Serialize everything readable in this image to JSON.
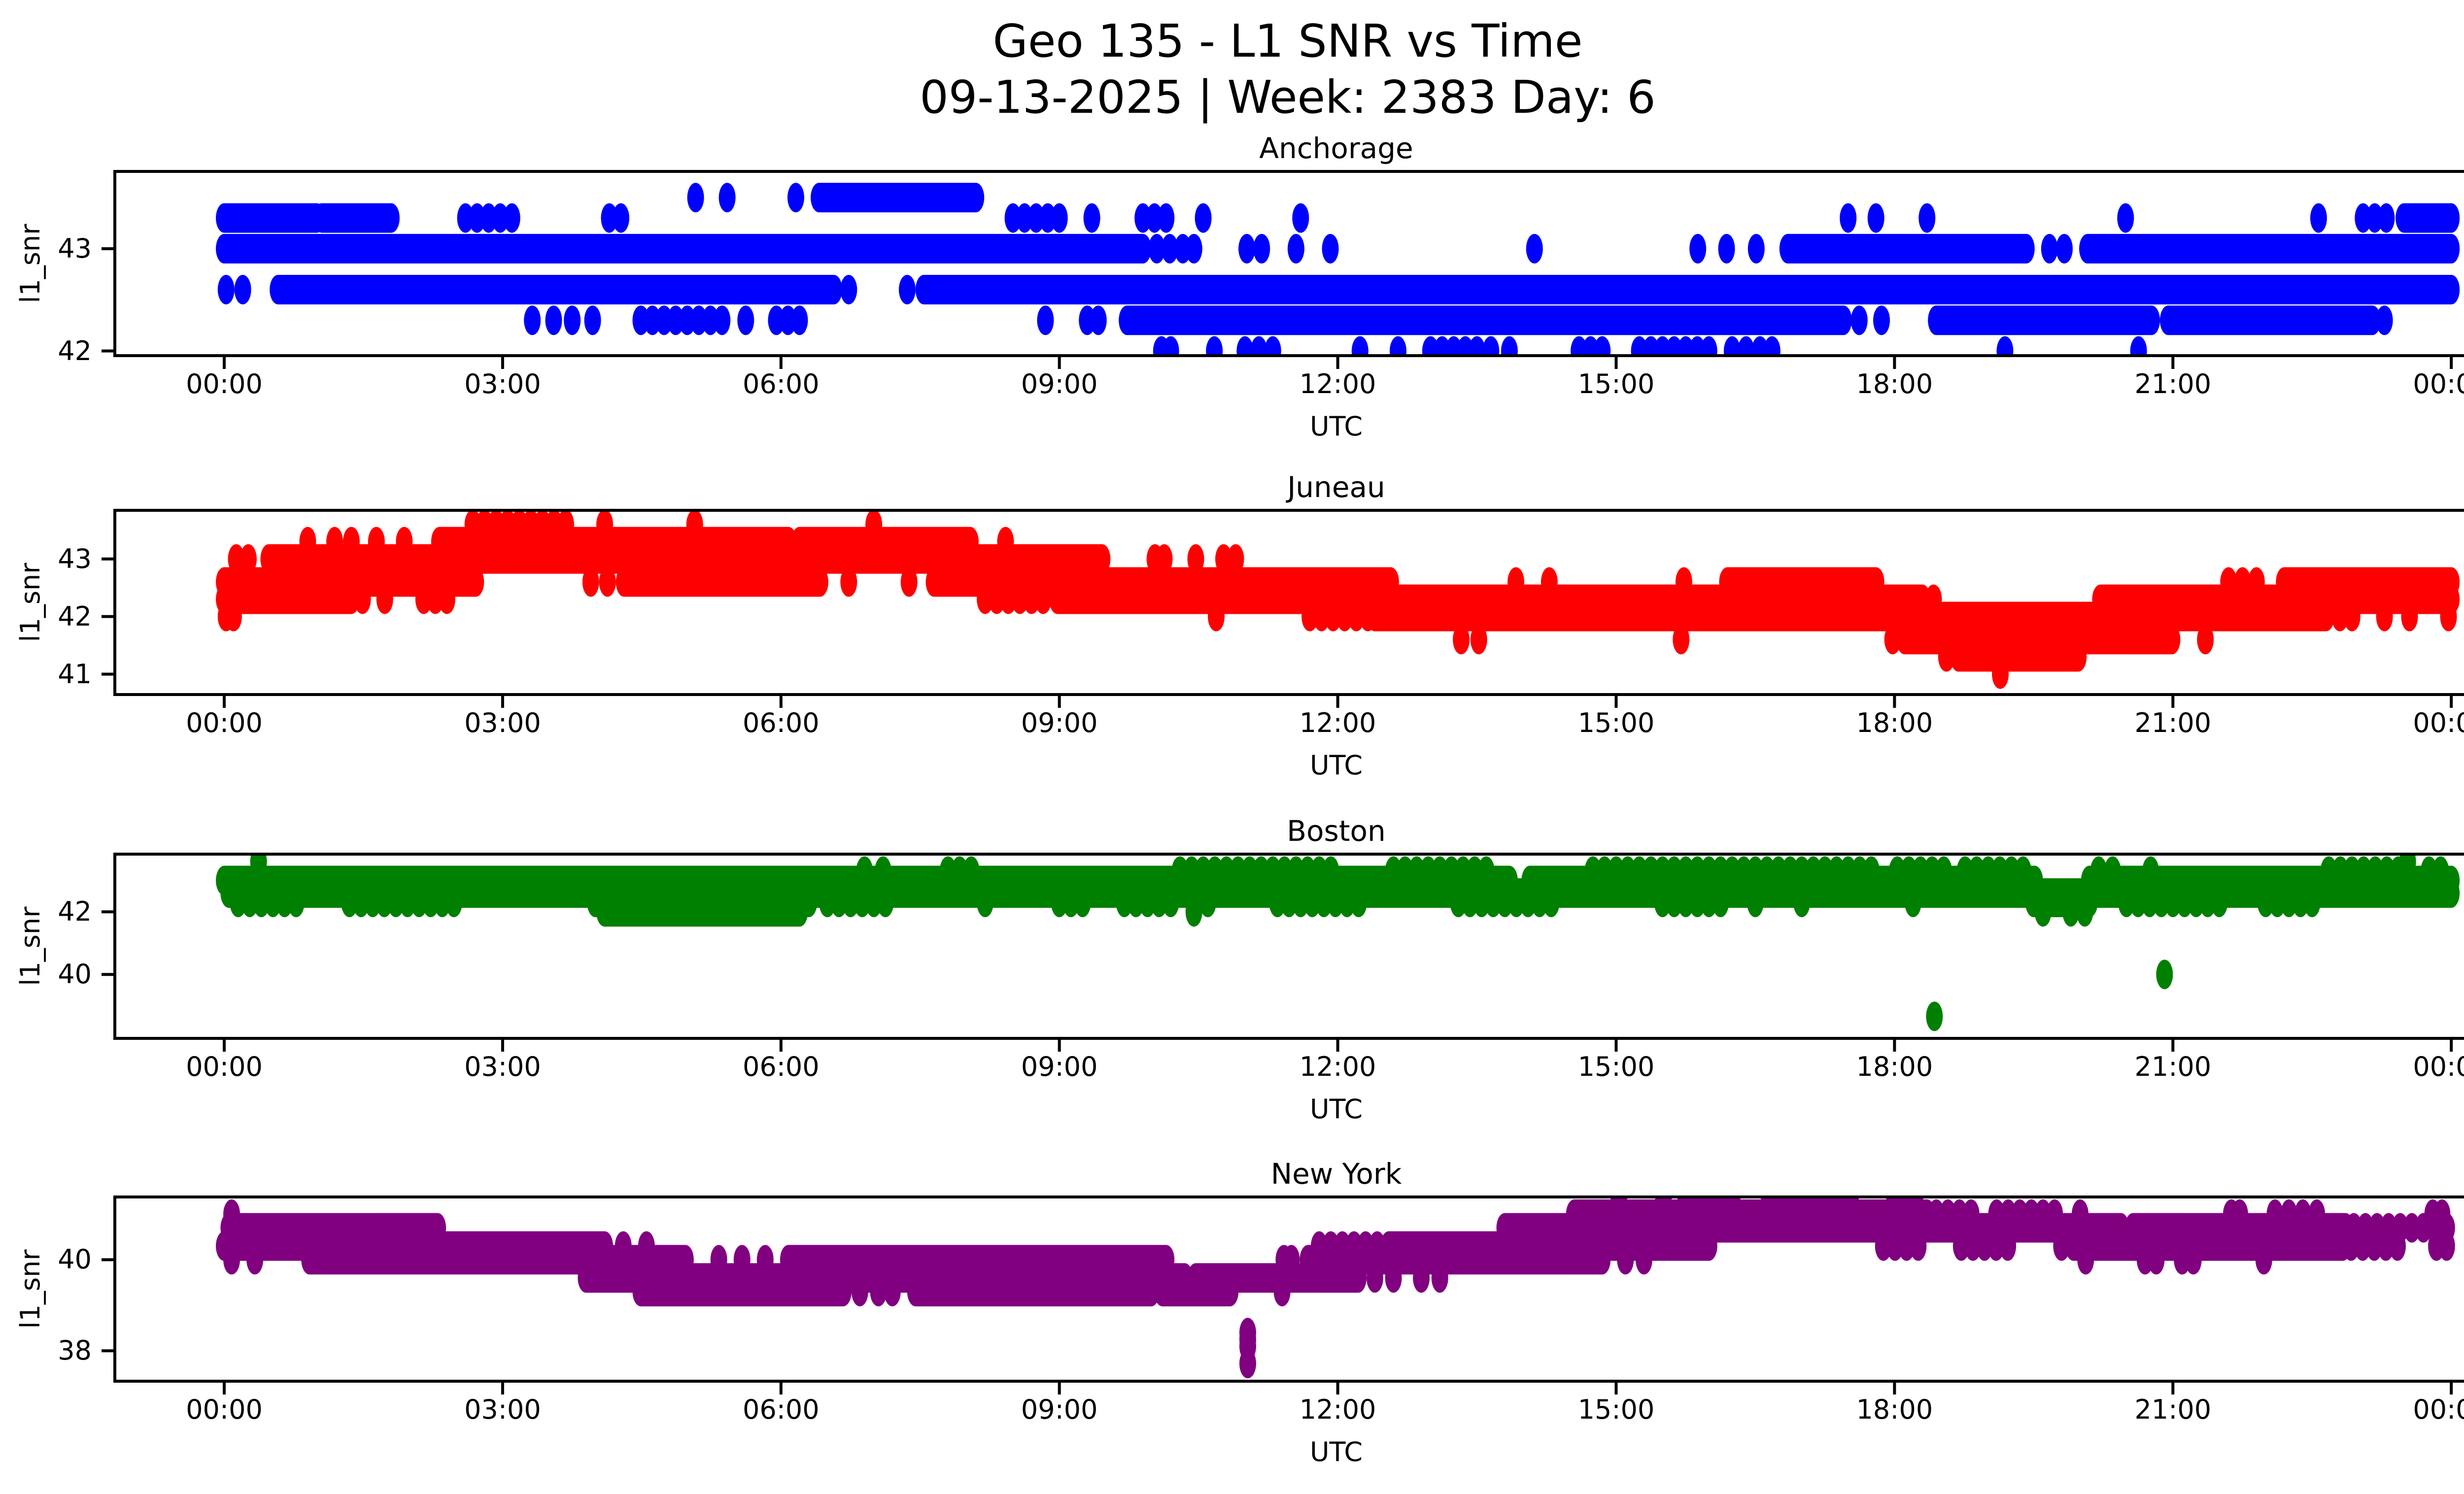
{
  "figure": {
    "title_line1": "Geo 135 - L1 SNR vs Time",
    "title_line2": "09-13-2025 | Week: 2383 Day: 6",
    "background": "#ffffff",
    "text_color": "#000000"
  },
  "chart_data": [
    {
      "type": "scatter",
      "title": "Anchorage",
      "xlabel": "UTC",
      "ylabel": "l1_snr",
      "color": "#0000ff",
      "x_hours_range": [
        0,
        24
      ],
      "ylim": [
        41.94,
        43.77
      ],
      "yticks": [
        {
          "v": 42,
          "label": "42"
        },
        {
          "v": 43,
          "label": "43"
        }
      ],
      "xticks": [
        {
          "t": 0,
          "label": "00:00"
        },
        {
          "t": 3,
          "label": "03:00"
        },
        {
          "t": 6,
          "label": "06:00"
        },
        {
          "t": 9,
          "label": "09:00"
        },
        {
          "t": 12,
          "label": "12:00"
        },
        {
          "t": 15,
          "label": "15:00"
        },
        {
          "t": 18,
          "label": "18:00"
        },
        {
          "t": 21,
          "label": "21:00"
        },
        {
          "t": 24,
          "label": "00:00"
        }
      ],
      "levels": [
        {
          "v": 43.5,
          "dense": [
            [
              6.41,
              8.1
            ]
          ],
          "sparse": [],
          "dots": [
            5.08,
            5.42,
            6.16
          ]
        },
        {
          "v": 43.3,
          "dense": [
            [
              0.0,
              1.0
            ],
            [
              1.05,
              1.8
            ],
            [
              23.49,
              24.0
            ]
          ],
          "sparse": [
            [
              2.6,
              3.2
            ],
            [
              4.15,
              4.35
            ],
            [
              8.5,
              9.05
            ],
            [
              9.9,
              10.2
            ],
            [
              23.05,
              23.3
            ]
          ],
          "dots": [
            9.35,
            10.55,
            11.6,
            17.5,
            17.8,
            18.35,
            20.49,
            22.57
          ]
        },
        {
          "v": 43.0,
          "dense": [
            [
              0.0,
              9.9
            ],
            [
              16.85,
              19.42
            ],
            [
              20.08,
              24.0
            ]
          ],
          "sparse": [],
          "dots": [
            10.05,
            10.19,
            10.33,
            10.45,
            11.02,
            11.18,
            11.55,
            11.92,
            14.12,
            15.88,
            16.19,
            16.51,
            19.67,
            19.83
          ]
        },
        {
          "v": 42.6,
          "dense": [
            [
              0.58,
              6.57
            ],
            [
              7.54,
              24.0
            ]
          ],
          "sparse": [],
          "dots": [
            0.02,
            0.2,
            6.73,
            7.36
          ]
        },
        {
          "v": 42.3,
          "dense": [
            [
              9.73,
              17.45
            ],
            [
              18.45,
              20.77
            ],
            [
              20.95,
              23.15
            ]
          ],
          "sparse": [
            [
              4.49,
              5.48
            ],
            [
              5.95,
              6.2
            ]
          ],
          "dots": [
            3.32,
            3.55,
            3.75,
            3.97,
            5.62,
            8.85,
            9.3,
            9.42,
            17.62,
            17.86,
            23.28
          ]
        },
        {
          "v": 42.0,
          "dense": [],
          "sparse": [
            [
              13.0,
              13.55
            ],
            [
              14.6,
              14.97
            ],
            [
              15.25,
              16.06
            ]
          ],
          "dots": [
            10.1,
            10.2,
            10.67,
            11.0,
            11.15,
            11.3,
            12.24,
            12.65,
            13.65,
            13.85,
            16.25,
            16.4,
            16.55,
            16.68,
            19.19,
            20.63
          ]
        }
      ],
      "points": []
    },
    {
      "type": "scatter",
      "title": "Juneau",
      "xlabel": "UTC",
      "ylabel": "l1_snr",
      "color": "#ff0000",
      "x_hours_range": [
        0,
        24
      ],
      "ylim": [
        40.62,
        43.87
      ],
      "yticks": [
        {
          "v": 41,
          "label": "41"
        },
        {
          "v": 42,
          "label": "42"
        },
        {
          "v": 43,
          "label": "43"
        }
      ],
      "xticks": [
        {
          "t": 0,
          "label": "00:00"
        },
        {
          "t": 3,
          "label": "03:00"
        },
        {
          "t": 6,
          "label": "06:00"
        },
        {
          "t": 9,
          "label": "09:00"
        },
        {
          "t": 12,
          "label": "12:00"
        },
        {
          "t": 15,
          "label": "15:00"
        },
        {
          "t": 18,
          "label": "18:00"
        },
        {
          "t": 21,
          "label": "21:00"
        },
        {
          "t": 24,
          "label": "00:00"
        }
      ],
      "levels": [
        {
          "v": 43.6,
          "dense": [],
          "sparse": [
            [
              2.68,
              3.74
            ]
          ],
          "dots": [
            4.1,
            5.07,
            7.0
          ]
        },
        {
          "v": 43.3,
          "dense": [
            [
              2.32,
              6.08
            ],
            [
              6.2,
              8.04
            ]
          ],
          "sparse": [],
          "dots": [
            0.9,
            1.19,
            1.37,
            1.64,
            1.94,
            8.42
          ]
        },
        {
          "v": 43.0,
          "dense": [
            [
              0.48,
              9.46
            ]
          ],
          "sparse": [],
          "dots": [
            0.13,
            0.26,
            10.03,
            10.13,
            10.47,
            10.77,
            10.9
          ]
        },
        {
          "v": 42.6,
          "dense": [
            [
              0.0,
              2.71
            ],
            [
              4.31,
              6.42
            ],
            [
              7.65,
              12.57
            ],
            [
              16.2,
              17.8
            ],
            [
              22.2,
              24.0
            ]
          ],
          "sparse": [],
          "dots": [
            3.95,
            4.13,
            6.73,
            7.38,
            13.92,
            14.28,
            15.73,
            21.6,
            21.75,
            21.9
          ]
        },
        {
          "v": 42.3,
          "dense": [
            [
              0.0,
              1.37
            ],
            [
              8.98,
              18.3
            ],
            [
              20.22,
              24.0
            ]
          ],
          "sparse": [
            [
              2.15,
              2.4
            ],
            [
              8.2,
              8.85
            ]
          ],
          "dots": [
            1.49,
            1.73,
            18.42
          ]
        },
        {
          "v": 42.0,
          "dense": [
            [
              12.4,
              22.65
            ]
          ],
          "sparse": [
            [
              11.7,
              12.4
            ]
          ],
          "dots": [
            0.02,
            0.1,
            10.69,
            22.8,
            22.93,
            23.28,
            23.55,
            23.97
          ]
        },
        {
          "v": 41.6,
          "dense": [
            [
              18.11,
              20.99
            ]
          ],
          "sparse": [],
          "dots": [
            13.33,
            13.52,
            15.7,
            17.98,
            21.35
          ]
        },
        {
          "v": 41.3,
          "dense": [
            [
              18.69,
              19.98
            ]
          ],
          "sparse": [],
          "dots": [
            18.56
          ]
        },
        {
          "v": 41.0,
          "dense": [],
          "sparse": [],
          "dots": [
            19.14
          ]
        }
      ],
      "points": []
    },
    {
      "type": "scatter",
      "title": "Boston",
      "xlabel": "UTC",
      "ylabel": "l1_snr",
      "color": "#008000",
      "x_hours_range": [
        0,
        24
      ],
      "ylim": [
        37.91,
        43.89
      ],
      "yticks": [
        {
          "v": 40,
          "label": "40"
        },
        {
          "v": 42,
          "label": "42"
        }
      ],
      "xticks": [
        {
          "t": 0,
          "label": "00:00"
        },
        {
          "t": 3,
          "label": "03:00"
        },
        {
          "t": 6,
          "label": "06:00"
        },
        {
          "t": 9,
          "label": "09:00"
        },
        {
          "t": 12,
          "label": "12:00"
        },
        {
          "t": 15,
          "label": "15:00"
        },
        {
          "t": 18,
          "label": "18:00"
        },
        {
          "t": 21,
          "label": "21:00"
        },
        {
          "t": 24,
          "label": "00:00"
        }
      ],
      "levels": [
        {
          "v": 43.6,
          "dense": [],
          "sparse": [],
          "dots": [
            0.37,
            23.53
          ]
        },
        {
          "v": 43.3,
          "dense": [],
          "sparse": [
            [
              7.8,
              8.1
            ],
            [
              10.3,
              12.0
            ],
            [
              12.6,
              13.7
            ],
            [
              14.75,
              17.79
            ],
            [
              18.03,
              18.53
            ],
            [
              18.76,
              19.45
            ],
            [
              22.68,
              23.47
            ],
            [
              23.76,
              24.0
            ]
          ],
          "dots": [
            6.9,
            7.1,
            20.2,
            20.35,
            20.76
          ]
        },
        {
          "v": 43.0,
          "dense": [
            [
              0.0,
              13.85
            ],
            [
              14.07,
              19.51
            ],
            [
              20.1,
              24.0
            ]
          ],
          "sparse": [],
          "dots": []
        },
        {
          "v": 42.6,
          "dense": [
            [
              0.05,
              24.0
            ]
          ],
          "sparse": [],
          "dots": []
        },
        {
          "v": 42.3,
          "dense": [
            [
              4.0,
              6.3
            ],
            [
              19.5,
              20.1
            ]
          ],
          "sparse": [
            [
              0.15,
              0.85
            ],
            [
              1.35,
              2.0
            ],
            [
              2.1,
              2.5
            ],
            [
              6.5,
              7.2
            ],
            [
              9.0,
              9.25
            ],
            [
              9.7,
              10.2
            ],
            [
              11.35,
              12.25
            ],
            [
              13.3,
              14.3
            ],
            [
              15.5,
              16.2
            ],
            [
              20.5,
              21.5
            ],
            [
              22.0,
              22.6
            ]
          ],
          "dots": [
            8.2,
            10.6,
            16.5,
            17.0,
            18.2
          ]
        },
        {
          "v": 42.0,
          "dense": [
            [
              4.1,
              6.2
            ]
          ],
          "sparse": [],
          "dots": [
            10.45,
            19.6,
            19.9,
            20.05
          ]
        }
      ],
      "points": [
        [
          18.43,
          38.66
        ],
        [
          20.91,
          40.0
        ]
      ]
    },
    {
      "type": "scatter",
      "title": "New York",
      "xlabel": "UTC",
      "ylabel": "l1_snr",
      "color": "#800080",
      "x_hours_range": [
        0,
        24
      ],
      "ylim": [
        37.3,
        41.41
      ],
      "yticks": [
        {
          "v": 38,
          "label": "38"
        },
        {
          "v": 40,
          "label": "40"
        }
      ],
      "xticks": [
        {
          "t": 0,
          "label": "00:00"
        },
        {
          "t": 3,
          "label": "03:00"
        },
        {
          "t": 6,
          "label": "06:00"
        },
        {
          "t": 9,
          "label": "09:00"
        },
        {
          "t": 12,
          "label": "12:00"
        },
        {
          "t": 15,
          "label": "15:00"
        },
        {
          "t": 18,
          "label": "18:00"
        },
        {
          "t": 21,
          "label": "21:00"
        },
        {
          "t": 24,
          "label": "00:00"
        }
      ],
      "levels": [
        {
          "v": 41.3,
          "dense": [],
          "sparse": [
            [
              15.75,
              16.27
            ],
            [
              16.65,
              17.6
            ]
          ],
          "dots": [
            15.03,
            15.51,
            18.0,
            18.1,
            18.22
          ]
        },
        {
          "v": 41.0,
          "dense": [
            [
              14.55,
              18.35
            ]
          ],
          "sparse": [
            [
              18.45,
              18.85
            ],
            [
              19.1,
              19.74
            ]
          ],
          "dots": [
            0.08,
            20.0,
            21.63,
            21.72,
            22.1,
            22.25,
            22.4,
            22.55,
            23.8,
            23.9
          ]
        },
        {
          "v": 40.7,
          "dense": [
            [
              0.05,
              2.3
            ],
            [
              13.8,
              20.44
            ],
            [
              20.57,
              22.86
            ]
          ],
          "sparse": [
            [
              22.95,
              24.0
            ]
          ],
          "dots": []
        },
        {
          "v": 40.3,
          "dense": [
            [
              0.0,
              4.1
            ],
            [
              12.55,
              16.0
            ],
            [
              19.93,
              22.83
            ]
          ],
          "sparse": [
            [
              11.8,
              12.5
            ],
            [
              17.88,
              18.35
            ],
            [
              18.72,
              19.29
            ],
            [
              22.92,
              23.46
            ]
          ],
          "dots": [
            4.3,
            4.55,
            19.8,
            23.84,
            23.95
          ]
        },
        {
          "v": 40.0,
          "dense": [
            [
              0.92,
              4.97
            ],
            [
              6.08,
              10.15
            ],
            [
              11.68,
              14.85
            ]
          ],
          "sparse": [],
          "dots": [
            0.08,
            0.33,
            5.33,
            5.58,
            5.83,
            11.42,
            11.5,
            15.1,
            15.3,
            20.06,
            20.7,
            20.82,
            21.1,
            21.22,
            21.98
          ]
        },
        {
          "v": 39.6,
          "dense": [
            [
              3.9,
              10.35
            ],
            [
              10.47,
              12.22
            ]
          ],
          "sparse": [],
          "dots": [
            12.4,
            12.6,
            12.9,
            13.1
          ]
        },
        {
          "v": 39.3,
          "dense": [
            [
              4.49,
              6.67
            ],
            [
              7.45,
              9.99
            ],
            [
              10.11,
              10.84
            ]
          ],
          "sparse": [],
          "dots": [
            6.85,
            7.05,
            7.2,
            11.4
          ]
        }
      ],
      "points": [
        [
          11.03,
          38.4
        ],
        [
          11.03,
          38.25
        ],
        [
          11.03,
          38.1
        ],
        [
          11.03,
          37.72
        ]
      ]
    }
  ]
}
